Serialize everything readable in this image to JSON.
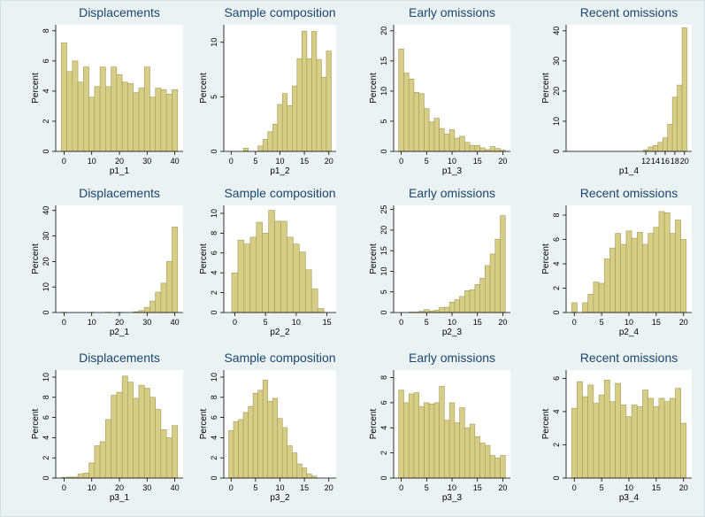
{
  "chart_data": [
    {
      "type": "histogram",
      "title": "Displacements",
      "x_label": "p1_1",
      "y_label": "Percent",
      "color": "#d6cd86",
      "edgecolor": "#a39b5a",
      "bins": [
        -1,
        1,
        3,
        5,
        7,
        9,
        11,
        13,
        15,
        17,
        19,
        21,
        23,
        25,
        27,
        29,
        31,
        33,
        35,
        37,
        39,
        41
      ],
      "values": [
        7.2,
        5.3,
        6.0,
        4.6,
        5.6,
        3.6,
        4.3,
        5.6,
        4.3,
        5.6,
        5.1,
        4.6,
        4.5,
        3.9,
        4.2,
        5.6,
        3.6,
        4.2,
        4.1,
        3.8,
        4.1
      ],
      "xlim": [
        -3,
        43
      ],
      "ylim": [
        0,
        8.4
      ],
      "xticks": [
        0,
        10,
        20,
        30,
        40
      ],
      "yticks": [
        0,
        2,
        4,
        6,
        8
      ]
    },
    {
      "type": "histogram",
      "title": "Sample composition",
      "x_label": "p1_2",
      "y_label": "Percent",
      "color": "#d6cd86",
      "edgecolor": "#a39b5a",
      "bins": [
        2.5,
        3.5,
        4.5,
        5.5,
        6.5,
        7.5,
        8.5,
        9.5,
        10.5,
        11.5,
        12.5,
        13.5,
        14.5,
        15.5,
        16.5,
        17.5,
        18.5,
        19.5,
        20.5
      ],
      "values": [
        0.3,
        0,
        0,
        0.5,
        1.1,
        1.8,
        2.5,
        4.3,
        5.3,
        4.2,
        6.0,
        8.5,
        11,
        8.5,
        11,
        8.4,
        6.8,
        9.2
      ],
      "xlim": [
        -1.5,
        21.5
      ],
      "ylim": [
        0,
        11.6
      ],
      "xticks": [
        0,
        5,
        10,
        15,
        20
      ],
      "yticks": [
        0,
        5,
        10
      ]
    },
    {
      "type": "histogram",
      "title": "Early omissions",
      "x_label": "p1_3",
      "y_label": "Percent",
      "color": "#d6cd86",
      "edgecolor": "#a39b5a",
      "bins": [
        -0.5,
        0.5,
        1.5,
        2.5,
        3.5,
        4.5,
        5.5,
        6.5,
        7.5,
        8.5,
        9.5,
        10.5,
        11.5,
        12.5,
        13.5,
        14.5,
        15.5,
        16.5,
        17.5,
        18.5,
        19.5,
        20.5
      ],
      "values": [
        17,
        13,
        12,
        9.8,
        9.6,
        7.1,
        4.9,
        5.5,
        3.8,
        2.9,
        3.6,
        2.2,
        2.5,
        1.5,
        1.0,
        1.0,
        0.6,
        0.3,
        0.8,
        0.5,
        0.2
      ],
      "xlim": [
        -1.5,
        21.5
      ],
      "ylim": [
        0,
        21
      ],
      "xticks": [
        0,
        5,
        10,
        15,
        20
      ],
      "yticks": [
        0,
        5,
        10,
        15,
        20
      ]
    },
    {
      "type": "histogram",
      "title": "Recent omissions",
      "x_label": "p1_4",
      "y_label": "Percent",
      "color": "#d6cd86",
      "edgecolor": "#a39b5a",
      "bins": [
        11.5,
        12.5,
        13.5,
        14.5,
        15.5,
        16.5,
        17.5,
        18.5,
        19.5,
        20.5
      ],
      "values": [
        0.5,
        1.5,
        2,
        3,
        4.5,
        9,
        18,
        22,
        41
      ],
      "xlim": [
        -4.5,
        21.5
      ],
      "ylim": [
        0,
        42
      ],
      "xticks": [
        12,
        14,
        16,
        18,
        20
      ],
      "yticks": [
        0,
        10,
        20,
        30,
        40
      ]
    },
    {
      "type": "histogram",
      "title": "Displacements",
      "x_label": "p2_1",
      "y_label": "Percent",
      "color": "#d6cd86",
      "edgecolor": "#a39b5a",
      "bins": [
        -1,
        1,
        3,
        5,
        7,
        9,
        11,
        13,
        15,
        17,
        19,
        21,
        23,
        25,
        27,
        29,
        31,
        33,
        35,
        37,
        39,
        41
      ],
      "values": [
        0.1,
        0,
        0,
        0,
        0,
        0.1,
        0,
        0,
        0.1,
        0,
        0.1,
        0,
        0,
        0.3,
        0.8,
        2,
        4.5,
        8,
        11.5,
        20,
        33.5
      ],
      "xlim": [
        -3,
        43
      ],
      "ylim": [
        0,
        42
      ],
      "xticks": [
        0,
        10,
        20,
        30,
        40
      ],
      "yticks": [
        0,
        10,
        20,
        30,
        40
      ]
    },
    {
      "type": "histogram",
      "title": "Sample composition",
      "x_label": "p2_2",
      "y_label": "Percent",
      "color": "#d6cd86",
      "edgecolor": "#a39b5a",
      "bins": [
        -0.5,
        0.5,
        1.5,
        2.5,
        3.5,
        4.5,
        5.5,
        6.5,
        7.5,
        8.5,
        9.5,
        10.5,
        11.5,
        12.5,
        13.5,
        14.5
      ],
      "values": [
        4.0,
        7.3,
        6.9,
        7.6,
        9.1,
        8.0,
        10.3,
        9.2,
        9.2,
        7.6,
        6.9,
        6.1,
        4.3,
        2.4,
        0.4
      ],
      "xlim": [
        -1.8,
        16.5
      ],
      "ylim": [
        0,
        10.8
      ],
      "xticks": [
        0,
        5,
        10,
        15
      ],
      "yticks": [
        0,
        2,
        4,
        6,
        8,
        10
      ]
    },
    {
      "type": "histogram",
      "title": "Early omissions",
      "x_label": "p2_3",
      "y_label": "Percent",
      "color": "#d6cd86",
      "edgecolor": "#a39b5a",
      "bins": [
        1.5,
        2.5,
        3.5,
        4.5,
        5.5,
        6.5,
        7.5,
        8.5,
        9.5,
        10.5,
        11.5,
        12.5,
        13.5,
        14.5,
        15.5,
        16.5,
        17.5,
        18.5,
        19.5,
        20.5
      ],
      "values": [
        0.1,
        0.1,
        0.3,
        0.7,
        0.4,
        0.6,
        1.2,
        1.3,
        2.5,
        3.1,
        3.9,
        5.3,
        5.5,
        6.8,
        8.3,
        11.4,
        14.2,
        17.8,
        23.5
      ],
      "xlim": [
        -1.5,
        21.5
      ],
      "ylim": [
        0,
        26
      ],
      "xticks": [
        0,
        5,
        10,
        15,
        20
      ],
      "yticks": [
        0,
        5,
        10,
        15,
        20,
        25
      ]
    },
    {
      "type": "histogram",
      "title": "Recent omissions",
      "x_label": "p2_4",
      "y_label": "Percent",
      "color": "#d6cd86",
      "edgecolor": "#a39b5a",
      "bins": [
        -0.5,
        0.5,
        1.5,
        2.5,
        3.5,
        4.5,
        5.5,
        6.5,
        7.5,
        8.5,
        9.5,
        10.5,
        11.5,
        12.5,
        13.5,
        14.5,
        15.5,
        16.5,
        17.5,
        18.5,
        19.5,
        20.5
      ],
      "values": [
        0.8,
        0,
        0.8,
        1.5,
        2.5,
        2.4,
        4.4,
        5.3,
        6.5,
        5.6,
        6.7,
        6.1,
        6.6,
        5.6,
        6.5,
        7.0,
        8.3,
        8.2,
        6.5,
        7.6,
        6.0
      ],
      "xlim": [
        -1.5,
        21.5
      ],
      "ylim": [
        0,
        8.8
      ],
      "xticks": [
        0,
        5,
        10,
        15,
        20
      ],
      "yticks": [
        0,
        2,
        4,
        6,
        8
      ]
    },
    {
      "type": "histogram",
      "title": "Displacements",
      "x_label": "p3_1",
      "y_label": "Percent",
      "color": "#d6cd86",
      "edgecolor": "#a39b5a",
      "bins": [
        -1,
        1,
        3,
        5,
        7,
        9,
        11,
        13,
        15,
        17,
        19,
        21,
        23,
        25,
        27,
        29,
        31,
        33,
        35,
        37,
        39,
        41
      ],
      "values": [
        0.05,
        0.1,
        0.1,
        0.4,
        0.5,
        1.5,
        3.2,
        3.6,
        5.8,
        8.2,
        8.5,
        10.1,
        9.5,
        7.9,
        9.2,
        8.9,
        8.0,
        6.8,
        4.8,
        4.0,
        5.2
      ],
      "xlim": [
        -3,
        43
      ],
      "ylim": [
        0,
        10.7
      ],
      "xticks": [
        0,
        10,
        20,
        30,
        40
      ],
      "yticks": [
        0,
        2,
        4,
        6,
        8,
        10
      ]
    },
    {
      "type": "histogram",
      "title": "Sample composition",
      "x_label": "p3_2",
      "y_label": "Percent",
      "color": "#d6cd86",
      "edgecolor": "#a39b5a",
      "bins": [
        -0.5,
        0.5,
        1.5,
        2.5,
        3.5,
        4.5,
        5.5,
        6.5,
        7.5,
        8.5,
        9.5,
        10.5,
        11.5,
        12.5,
        13.5,
        14.5,
        15.5,
        16.5,
        17.5
      ],
      "values": [
        4.7,
        5.6,
        5.8,
        6.5,
        7.1,
        8.4,
        8.7,
        9.7,
        7.6,
        7.9,
        5.9,
        5.0,
        3.2,
        2.5,
        1.4,
        1.0,
        0.4,
        0.2
      ],
      "xlim": [
        -1.5,
        21.5
      ],
      "ylim": [
        0,
        10.7
      ],
      "xticks": [
        0,
        5,
        10,
        15,
        20
      ],
      "yticks": [
        0,
        2,
        4,
        6,
        8,
        10
      ]
    },
    {
      "type": "histogram",
      "title": "Early omissions",
      "x_label": "p3_3",
      "y_label": "Percent",
      "color": "#d6cd86",
      "edgecolor": "#a39b5a",
      "bins": [
        -0.5,
        0.5,
        1.5,
        2.5,
        3.5,
        4.5,
        5.5,
        6.5,
        7.5,
        8.5,
        9.5,
        10.5,
        11.5,
        12.5,
        13.5,
        14.5,
        15.5,
        16.5,
        17.5,
        18.5,
        19.5,
        20.5
      ],
      "values": [
        7.0,
        6.0,
        6.7,
        6.8,
        5.7,
        6.0,
        5.9,
        6.0,
        7.3,
        4.6,
        6.0,
        4.4,
        5.6,
        4.0,
        4.3,
        3.3,
        2.8,
        2.6,
        1.8,
        1.6,
        1.8
      ],
      "xlim": [
        -1.5,
        21.5
      ],
      "ylim": [
        0,
        8.6
      ],
      "xticks": [
        0,
        5,
        10,
        15,
        20
      ],
      "yticks": [
        0,
        2,
        4,
        6,
        8
      ]
    },
    {
      "type": "histogram",
      "title": "Recent omissions",
      "x_label": "p3_4",
      "y_label": "Percent",
      "color": "#d6cd86",
      "edgecolor": "#a39b5a",
      "bins": [
        -0.5,
        0.5,
        1.5,
        2.5,
        3.5,
        4.5,
        5.5,
        6.5,
        7.5,
        8.5,
        9.5,
        10.5,
        11.5,
        12.5,
        13.5,
        14.5,
        15.5,
        16.5,
        17.5,
        18.5,
        19.5,
        20.5
      ],
      "values": [
        4.2,
        5.8,
        4.9,
        5.6,
        4.5,
        5.0,
        5.9,
        4.6,
        5.7,
        4.4,
        3.7,
        4.4,
        4.3,
        5.3,
        4.8,
        4.3,
        4.8,
        4.6,
        4.8,
        5.4,
        3.3
      ],
      "xlim": [
        -1.5,
        21.5
      ],
      "ylim": [
        0,
        6.5
      ],
      "xticks": [
        0,
        5,
        10,
        15,
        20
      ],
      "yticks": [
        0,
        2,
        4,
        6
      ]
    }
  ]
}
